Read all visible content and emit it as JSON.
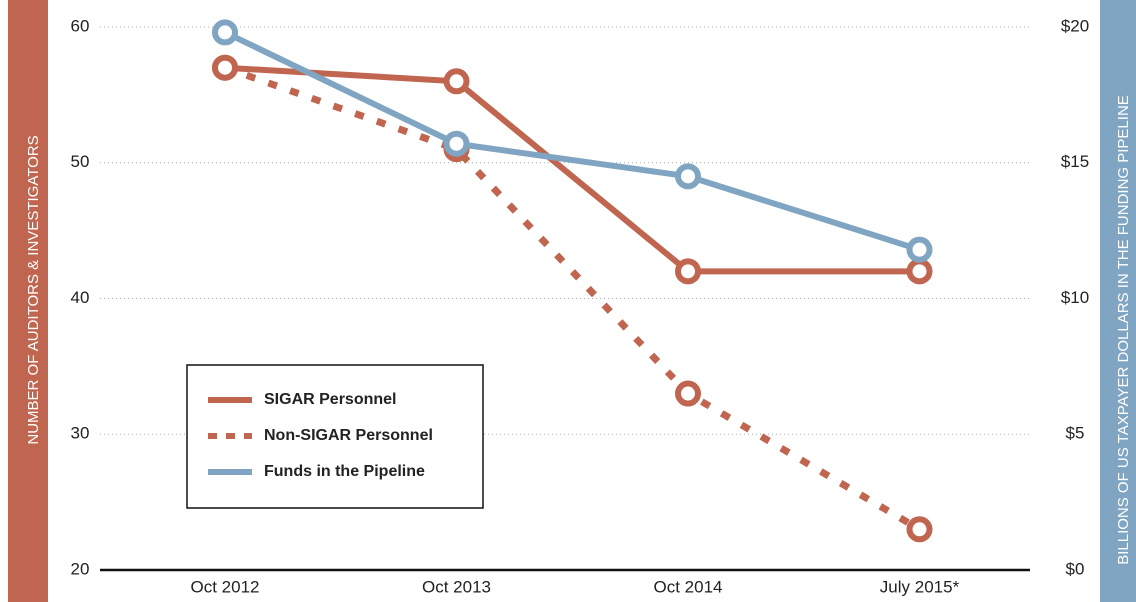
{
  "chart_data": {
    "type": "line",
    "ylabel": "NUMBER OF AUDITORS & INVESTIGATORS",
    "y2label": "BILLIONS OF US TAXPAYER DOLLARS IN THE FUNDING PIPELINE",
    "categories": [
      "Oct 2012",
      "Oct 2013",
      "Oct 2014",
      "July 2015*"
    ],
    "series": [
      {
        "name": "SIGAR Personnel",
        "color": "#c0654f",
        "style": "solid",
        "values": [
          57,
          56,
          42,
          42
        ]
      },
      {
        "name": "Non-SIGAR Personnel",
        "color": "#c0654f",
        "style": "dotted",
        "values": [
          57,
          51,
          33,
          23
        ]
      },
      {
        "name": "Funds in the Pipeline",
        "color": "#7fa5c2",
        "style": "solid",
        "axis": "y2",
        "values": [
          19.8,
          15.7,
          14.5,
          11.8
        ]
      }
    ],
    "ylim": [
      20,
      60
    ],
    "yticks": [
      20,
      30,
      40,
      50,
      60
    ],
    "y2lim": [
      0,
      20
    ],
    "y2ticks": [
      {
        "value": 0,
        "label": "$0"
      },
      {
        "value": 5,
        "label": "$5"
      },
      {
        "value": 10,
        "label": "$10"
      },
      {
        "value": 15,
        "label": "$15"
      },
      {
        "value": 20,
        "label": "$20"
      }
    ],
    "grid": true
  }
}
